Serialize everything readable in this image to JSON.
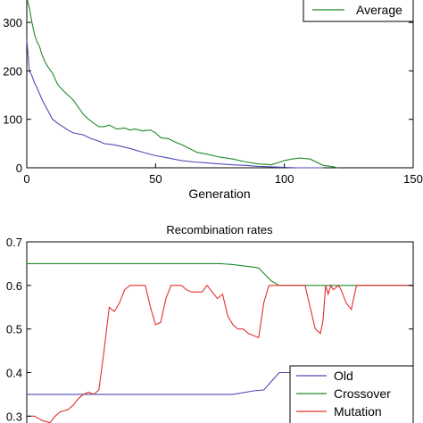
{
  "chart_data": [
    {
      "type": "line",
      "title": "",
      "xlabel": "Generation",
      "ylabel": "",
      "xlim": [
        0,
        150
      ],
      "ylim": [
        0,
        350
      ],
      "x_ticks": [
        "0",
        "50",
        "100",
        "150"
      ],
      "y_ticks": [
        "0",
        "100",
        "200",
        "300"
      ],
      "legend": {
        "position": "top-right",
        "entries": [
          "Average"
        ]
      },
      "series": [
        {
          "name": "Average",
          "color": "#1f8a2a",
          "x": [
            0,
            1,
            2,
            3,
            4,
            5,
            6,
            7,
            8,
            10,
            12,
            14,
            16,
            18,
            20,
            22,
            24,
            26,
            28,
            30,
            32,
            35,
            38,
            40,
            42,
            45,
            48,
            50,
            52,
            55,
            58,
            60,
            63,
            66,
            70,
            75,
            80,
            85,
            90,
            95,
            100,
            103,
            106,
            110,
            115,
            118,
            121
          ],
          "y": [
            350,
            330,
            300,
            275,
            260,
            250,
            232,
            220,
            210,
            195,
            172,
            160,
            150,
            140,
            125,
            110,
            100,
            92,
            85,
            85,
            88,
            80,
            82,
            78,
            80,
            76,
            78,
            72,
            62,
            60,
            52,
            48,
            40,
            32,
            28,
            22,
            18,
            12,
            8,
            6,
            15,
            18,
            20,
            18,
            5,
            3,
            0
          ]
        },
        {
          "name": "",
          "color": "#4b4bb4",
          "x": [
            0,
            1,
            2,
            3,
            4,
            6,
            8,
            10,
            12,
            14,
            16,
            18,
            20,
            22,
            25,
            28,
            30,
            33,
            36,
            40,
            45,
            50,
            55,
            60,
            65,
            70,
            75,
            80,
            85,
            90,
            95,
            100,
            105,
            110,
            113,
            115
          ],
          "y": [
            265,
            200,
            190,
            175,
            165,
            140,
            120,
            100,
            92,
            85,
            78,
            72,
            70,
            68,
            60,
            55,
            50,
            48,
            45,
            40,
            32,
            25,
            20,
            15,
            12,
            10,
            8,
            6,
            5,
            3,
            2,
            1,
            0,
            0,
            0,
            0
          ]
        }
      ]
    },
    {
      "type": "line",
      "title": "Recombination rates",
      "xlabel": "",
      "ylabel": "",
      "xlim": [
        0,
        150
      ],
      "ylim": [
        0.27,
        0.7
      ],
      "y_ticks": [
        "0.3",
        "0.4",
        "0.5",
        "0.6",
        "0.7"
      ],
      "legend": {
        "position": "bottom-right",
        "entries": [
          "Old",
          "Crossover",
          "Mutation"
        ]
      },
      "series": [
        {
          "name": "Old",
          "color": "#4b4bb4",
          "x": [
            0,
            40,
            65,
            75,
            80,
            85,
            88,
            92,
            95,
            98,
            150
          ],
          "y": [
            0.35,
            0.35,
            0.35,
            0.35,
            0.35,
            0.355,
            0.358,
            0.36,
            0.38,
            0.4,
            0.4
          ]
        },
        {
          "name": "Crossover",
          "color": "#1f8a2a",
          "x": [
            0,
            40,
            65,
            75,
            80,
            84,
            88,
            90,
            92,
            95,
            98,
            150
          ],
          "y": [
            0.65,
            0.65,
            0.65,
            0.65,
            0.648,
            0.645,
            0.642,
            0.64,
            0.628,
            0.61,
            0.6,
            0.6
          ]
        },
        {
          "name": "Mutation",
          "color": "#e03030",
          "x": [
            0,
            3,
            6,
            9,
            11,
            13,
            16,
            18,
            20,
            22,
            24,
            26,
            28,
            30,
            32,
            34,
            36,
            38,
            40,
            41,
            42,
            44,
            46,
            48,
            50,
            52,
            54,
            56,
            58,
            60,
            62,
            64,
            66,
            68,
            70,
            72,
            74,
            76,
            78,
            80,
            82,
            84,
            86,
            88,
            90,
            92,
            94,
            96,
            98,
            100,
            102,
            104,
            106,
            108,
            110,
            112,
            114,
            115,
            116,
            117,
            118,
            119,
            120,
            121,
            122,
            124,
            126,
            128,
            130,
            150
          ],
          "y": [
            0.3,
            0.3,
            0.29,
            0.285,
            0.3,
            0.31,
            0.315,
            0.325,
            0.34,
            0.35,
            0.355,
            0.35,
            0.36,
            0.45,
            0.55,
            0.54,
            0.56,
            0.59,
            0.6,
            0.6,
            0.6,
            0.6,
            0.6,
            0.55,
            0.51,
            0.515,
            0.57,
            0.6,
            0.6,
            0.6,
            0.59,
            0.585,
            0.585,
            0.585,
            0.6,
            0.585,
            0.57,
            0.58,
            0.53,
            0.51,
            0.5,
            0.5,
            0.49,
            0.485,
            0.48,
            0.56,
            0.6,
            0.6,
            0.6,
            0.6,
            0.6,
            0.6,
            0.6,
            0.6,
            0.55,
            0.5,
            0.49,
            0.52,
            0.6,
            0.58,
            0.6,
            0.59,
            0.595,
            0.6,
            0.59,
            0.56,
            0.545,
            0.6,
            0.6,
            0.6
          ]
        }
      ]
    }
  ]
}
